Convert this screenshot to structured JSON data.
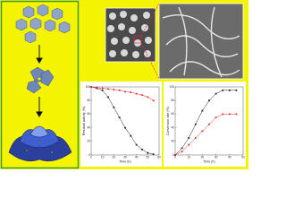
{
  "chart_data": [
    {
      "type": "line",
      "x_label": "Time (h)",
      "y_label": "Residual activity (%)",
      "x": [
        0,
        5,
        10,
        15,
        20,
        25,
        30,
        35,
        40,
        45,
        50,
        55
      ],
      "series": [
        {
          "color": "#222222",
          "values": [
            100,
            98,
            95,
            85,
            70,
            55,
            40,
            28,
            15,
            8,
            3,
            1
          ]
        },
        {
          "color": "#e8262b",
          "values": [
            100,
            99,
            98,
            97,
            96,
            95,
            93,
            92,
            90,
            88,
            85,
            80
          ]
        }
      ],
      "xlim": [
        0,
        60
      ],
      "xticks": [
        0,
        10,
        20,
        30,
        40,
        50,
        60
      ],
      "ylim": [
        0,
        100
      ],
      "yticks": [
        0,
        20,
        40,
        60,
        80,
        100
      ]
    },
    {
      "type": "line",
      "x_label": "Time (h)",
      "y_label": "Conversion rate (%)",
      "x": [
        0,
        5,
        10,
        15,
        20,
        25,
        30,
        35,
        40,
        45
      ],
      "series": [
        {
          "color": "#222222",
          "values": [
            0,
            10,
            25,
            45,
            65,
            80,
            90,
            95,
            95,
            95
          ]
        },
        {
          "color": "#e8262b",
          "values": [
            0,
            5,
            15,
            25,
            35,
            45,
            55,
            60,
            60,
            60
          ]
        }
      ],
      "xlim": [
        0,
        50
      ],
      "xticks": [
        0,
        10,
        20,
        30,
        40,
        50
      ],
      "ylim": [
        0,
        100
      ],
      "yticks": [
        0,
        20,
        40,
        60,
        80,
        100
      ]
    }
  ]
}
